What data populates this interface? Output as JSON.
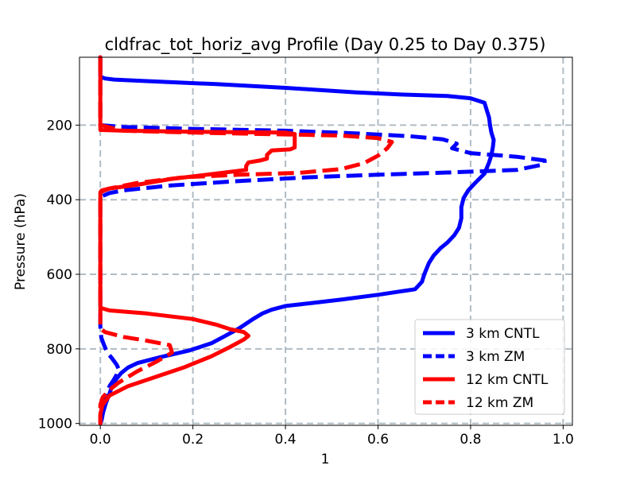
{
  "chart_data": {
    "type": "line",
    "title": "cldfrac_tot_horiz_avg Profile (Day 0.25 to Day 0.375)",
    "xlabel": "1",
    "ylabel": "Pressure (hPa)",
    "xlim": [
      -0.045,
      1.02
    ],
    "ylim": [
      1005,
      18
    ],
    "y_inverted": true,
    "x_ticks": [
      0.0,
      0.2,
      0.4,
      0.6,
      0.8,
      1.0
    ],
    "x_tick_labels": [
      "0.0",
      "0.2",
      "0.4",
      "0.6",
      "0.8",
      "1.0"
    ],
    "y_ticks": [
      200,
      400,
      600,
      800,
      1000
    ],
    "y_tick_labels": [
      "200",
      "400",
      "600",
      "800",
      "1000"
    ],
    "grid": true,
    "legend_position": "lower-right",
    "series": [
      {
        "name": "3 km CNTL",
        "color": "#0000ff",
        "style": "solid",
        "points": [
          [
            0.0,
            18
          ],
          [
            0.0,
            70
          ],
          [
            0.01,
            75
          ],
          [
            0.03,
            78
          ],
          [
            0.1,
            82
          ],
          [
            0.25,
            90
          ],
          [
            0.4,
            100
          ],
          [
            0.55,
            112
          ],
          [
            0.65,
            118
          ],
          [
            0.75,
            122
          ],
          [
            0.8,
            128
          ],
          [
            0.83,
            140
          ],
          [
            0.835,
            160
          ],
          [
            0.84,
            180
          ],
          [
            0.842,
            200
          ],
          [
            0.845,
            220
          ],
          [
            0.85,
            240
          ],
          [
            0.848,
            260
          ],
          [
            0.845,
            280
          ],
          [
            0.84,
            300
          ],
          [
            0.83,
            330
          ],
          [
            0.81,
            355
          ],
          [
            0.795,
            375
          ],
          [
            0.785,
            395
          ],
          [
            0.78,
            420
          ],
          [
            0.78,
            450
          ],
          [
            0.775,
            475
          ],
          [
            0.765,
            495
          ],
          [
            0.75,
            515
          ],
          [
            0.735,
            530
          ],
          [
            0.72,
            550
          ],
          [
            0.71,
            570
          ],
          [
            0.7,
            600
          ],
          [
            0.695,
            620
          ],
          [
            0.68,
            640
          ],
          [
            0.6,
            655
          ],
          [
            0.52,
            668
          ],
          [
            0.45,
            678
          ],
          [
            0.4,
            685
          ],
          [
            0.37,
            695
          ],
          [
            0.35,
            705
          ],
          [
            0.33,
            720
          ],
          [
            0.3,
            745
          ],
          [
            0.27,
            765
          ],
          [
            0.24,
            785
          ],
          [
            0.19,
            805
          ],
          [
            0.13,
            822
          ],
          [
            0.08,
            838
          ],
          [
            0.06,
            850
          ],
          [
            0.045,
            865
          ],
          [
            0.035,
            880
          ],
          [
            0.025,
            900
          ],
          [
            0.02,
            920
          ],
          [
            0.012,
            945
          ],
          [
            0.006,
            970
          ],
          [
            0.003,
            990
          ],
          [
            0.0,
            1000
          ]
        ]
      },
      {
        "name": "3 km ZM",
        "color": "#0000ff",
        "style": "dashed",
        "points": [
          [
            0.0,
            18
          ],
          [
            0.0,
            200
          ],
          [
            0.05,
            205
          ],
          [
            0.2,
            210
          ],
          [
            0.4,
            215
          ],
          [
            0.55,
            222
          ],
          [
            0.67,
            230
          ],
          [
            0.74,
            238
          ],
          [
            0.77,
            250
          ],
          [
            0.76,
            262
          ],
          [
            0.8,
            275
          ],
          [
            0.9,
            285
          ],
          [
            0.96,
            295
          ],
          [
            0.96,
            305
          ],
          [
            0.9,
            320
          ],
          [
            0.75,
            327
          ],
          [
            0.6,
            333
          ],
          [
            0.45,
            340
          ],
          [
            0.3,
            350
          ],
          [
            0.15,
            362
          ],
          [
            0.05,
            375
          ],
          [
            0.02,
            382
          ],
          [
            0.005,
            390
          ],
          [
            0.0,
            400
          ],
          [
            0.0,
            700
          ],
          [
            0.0,
            740
          ],
          [
            0.002,
            770
          ],
          [
            0.008,
            790
          ],
          [
            0.015,
            810
          ],
          [
            0.025,
            825
          ],
          [
            0.035,
            842
          ],
          [
            0.04,
            855
          ],
          [
            0.035,
            870
          ],
          [
            0.028,
            885
          ],
          [
            0.02,
            900
          ],
          [
            0.012,
            925
          ],
          [
            0.006,
            950
          ],
          [
            0.002,
            975
          ],
          [
            0.0,
            1000
          ]
        ]
      },
      {
        "name": "12 km CNTL",
        "color": "#ff0000",
        "style": "solid",
        "points": [
          [
            0.0,
            18
          ],
          [
            0.0,
            200
          ],
          [
            0.0,
            213
          ],
          [
            0.05,
            215
          ],
          [
            0.2,
            218
          ],
          [
            0.4,
            220
          ],
          [
            0.42,
            224
          ],
          [
            0.42,
            240
          ],
          [
            0.42,
            260
          ],
          [
            0.41,
            265
          ],
          [
            0.37,
            268
          ],
          [
            0.36,
            280
          ],
          [
            0.36,
            290
          ],
          [
            0.345,
            295
          ],
          [
            0.32,
            300
          ],
          [
            0.315,
            310
          ],
          [
            0.315,
            320
          ],
          [
            0.25,
            330
          ],
          [
            0.15,
            345
          ],
          [
            0.08,
            360
          ],
          [
            0.02,
            370
          ],
          [
            0.003,
            375
          ],
          [
            0.0,
            380
          ],
          [
            0.0,
            690
          ],
          [
            0.02,
            697
          ],
          [
            0.1,
            705
          ],
          [
            0.2,
            720
          ],
          [
            0.25,
            735
          ],
          [
            0.28,
            747
          ],
          [
            0.31,
            755
          ],
          [
            0.32,
            765
          ],
          [
            0.31,
            775
          ],
          [
            0.28,
            795
          ],
          [
            0.24,
            820
          ],
          [
            0.18,
            850
          ],
          [
            0.12,
            875
          ],
          [
            0.06,
            900
          ],
          [
            0.02,
            925
          ],
          [
            0.005,
            950
          ],
          [
            0.0,
            975
          ],
          [
            0.0,
            1000
          ]
        ]
      },
      {
        "name": "12 km ZM",
        "color": "#ff0000",
        "style": "dashed",
        "points": [
          [
            0.0,
            18
          ],
          [
            0.0,
            200
          ],
          [
            0.05,
            215
          ],
          [
            0.2,
            220
          ],
          [
            0.4,
            225
          ],
          [
            0.52,
            228
          ],
          [
            0.6,
            235
          ],
          [
            0.63,
            245
          ],
          [
            0.62,
            262
          ],
          [
            0.6,
            282
          ],
          [
            0.57,
            302
          ],
          [
            0.52,
            318
          ],
          [
            0.43,
            328
          ],
          [
            0.3,
            333
          ],
          [
            0.18,
            340
          ],
          [
            0.08,
            355
          ],
          [
            0.02,
            370
          ],
          [
            0.0,
            380
          ],
          [
            0.0,
            745
          ],
          [
            0.01,
            755
          ],
          [
            0.05,
            768
          ],
          [
            0.1,
            778
          ],
          [
            0.15,
            790
          ],
          [
            0.155,
            810
          ],
          [
            0.12,
            835
          ],
          [
            0.08,
            860
          ],
          [
            0.04,
            890
          ],
          [
            0.02,
            910
          ],
          [
            0.005,
            930
          ],
          [
            0.0,
            950
          ],
          [
            0.0,
            1000
          ]
        ]
      }
    ]
  }
}
